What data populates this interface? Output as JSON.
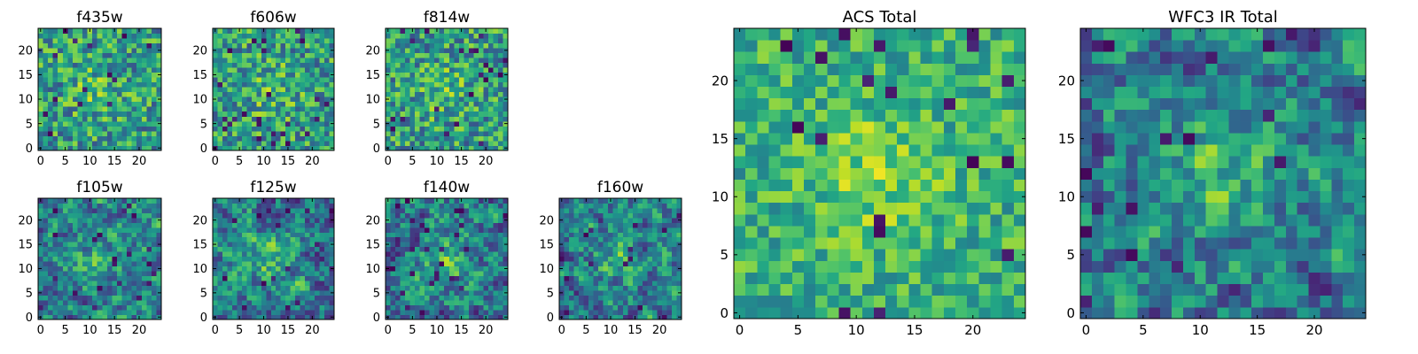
{
  "figure": {
    "colormap": "viridis",
    "background": "#ffffff"
  },
  "chart_data": [
    {
      "type": "heatmap",
      "title": "f435w",
      "xlabel": "",
      "ylabel": "",
      "grid_size": 25,
      "xlim": [
        -0.5,
        24.5
      ],
      "ylim": [
        -0.5,
        24.5
      ],
      "xticks": [
        0,
        5,
        10,
        15,
        20
      ],
      "yticks": [
        0,
        5,
        10,
        15,
        20
      ],
      "grid": false,
      "colormap": "viridis",
      "texture": "noisy",
      "seed": 11
    },
    {
      "type": "heatmap",
      "title": "f606w",
      "xlabel": "",
      "ylabel": "",
      "grid_size": 25,
      "xlim": [
        -0.5,
        24.5
      ],
      "ylim": [
        -0.5,
        24.5
      ],
      "xticks": [
        0,
        5,
        10,
        15,
        20
      ],
      "yticks": [
        0,
        5,
        10,
        15,
        20
      ],
      "grid": false,
      "colormap": "viridis",
      "texture": "noisy",
      "seed": 23
    },
    {
      "type": "heatmap",
      "title": "f814w",
      "xlabel": "",
      "ylabel": "",
      "grid_size": 25,
      "xlim": [
        -0.5,
        24.5
      ],
      "ylim": [
        -0.5,
        24.5
      ],
      "xticks": [
        0,
        5,
        10,
        15,
        20
      ],
      "yticks": [
        0,
        5,
        10,
        15,
        20
      ],
      "grid": false,
      "colormap": "viridis",
      "texture": "noisy",
      "seed": 37
    },
    {
      "type": "heatmap",
      "title": "f105w",
      "xlabel": "",
      "ylabel": "",
      "grid_size": 25,
      "xlim": [
        -0.5,
        24.5
      ],
      "ylim": [
        -0.5,
        24.5
      ],
      "xticks": [
        0,
        5,
        10,
        15,
        20
      ],
      "yticks": [
        0,
        5,
        10,
        15,
        20
      ],
      "grid": false,
      "colormap": "viridis",
      "texture": "smooth",
      "seed": 41
    },
    {
      "type": "heatmap",
      "title": "f125w",
      "xlabel": "",
      "ylabel": "",
      "grid_size": 25,
      "xlim": [
        -0.5,
        24.5
      ],
      "ylim": [
        -0.5,
        24.5
      ],
      "xticks": [
        0,
        5,
        10,
        15,
        20
      ],
      "yticks": [
        0,
        5,
        10,
        15,
        20
      ],
      "grid": false,
      "colormap": "viridis",
      "texture": "smooth",
      "seed": 53
    },
    {
      "type": "heatmap",
      "title": "f140w",
      "xlabel": "",
      "ylabel": "",
      "grid_size": 25,
      "xlim": [
        -0.5,
        24.5
      ],
      "ylim": [
        -0.5,
        24.5
      ],
      "xticks": [
        0,
        5,
        10,
        15,
        20
      ],
      "yticks": [
        0,
        5,
        10,
        15,
        20
      ],
      "grid": false,
      "colormap": "viridis",
      "texture": "smooth",
      "seed": 67
    },
    {
      "type": "heatmap",
      "title": "f160w",
      "xlabel": "",
      "ylabel": "",
      "grid_size": 25,
      "xlim": [
        -0.5,
        24.5
      ],
      "ylim": [
        -0.5,
        24.5
      ],
      "xticks": [
        0,
        5,
        10,
        15,
        20
      ],
      "yticks": [
        0,
        5,
        10,
        15,
        20
      ],
      "grid": false,
      "colormap": "viridis",
      "texture": "smooth",
      "seed": 79
    },
    {
      "type": "heatmap",
      "title": "ACS Total",
      "xlabel": "",
      "ylabel": "",
      "grid_size": 25,
      "xlim": [
        -0.5,
        24.5
      ],
      "ylim": [
        -0.5,
        24.5
      ],
      "xticks": [
        0,
        5,
        10,
        15,
        20
      ],
      "yticks": [
        0,
        5,
        10,
        15,
        20
      ],
      "grid": false,
      "colormap": "viridis",
      "texture": "bright",
      "seed": 97
    },
    {
      "type": "heatmap",
      "title": "WFC3 IR Total",
      "xlabel": "",
      "ylabel": "",
      "grid_size": 25,
      "xlim": [
        -0.5,
        24.5
      ],
      "ylim": [
        -0.5,
        24.5
      ],
      "xticks": [
        0,
        5,
        10,
        15,
        20
      ],
      "yticks": [
        0,
        5,
        10,
        15,
        20
      ],
      "grid": false,
      "colormap": "viridis",
      "texture": "smooth",
      "seed": 113
    }
  ]
}
